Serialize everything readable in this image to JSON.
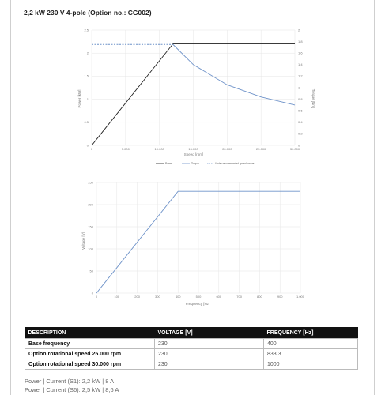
{
  "page": {
    "title": "2,2 kW 230 V 4-pole (Option no.: CG002)"
  },
  "colors": {
    "power": "#1f1f1f",
    "torque": "#6f93c9",
    "voltage": "#6f93c9",
    "grid": "#e5e5e5"
  },
  "chart_data": [
    {
      "type": "line",
      "x_ticks": [
        "0",
        "5.000",
        "10.000",
        "15.000",
        "20.000",
        "25.000",
        "30.000"
      ],
      "y_ticks": [
        "0",
        "0.5",
        "1",
        "1.5",
        "2",
        "2.5"
      ],
      "y2_ticks": [
        "0",
        "0.2",
        "0.4",
        "0.6",
        "0.8",
        "1",
        "1.2",
        "1.4",
        "1.6",
        "1.8",
        "2"
      ],
      "xlabel": "Speed [rpm]",
      "ylabel": "Power [kW]",
      "y2label": "Torque [Nm]",
      "xlim": [
        0,
        30000
      ],
      "ylim": [
        0,
        2.5
      ],
      "y2lim": [
        0,
        2
      ],
      "legend_position": "bottom-center",
      "series": [
        {
          "name": "Power",
          "axis": "left",
          "style": "solid",
          "x": [
            0,
            12000,
            30000
          ],
          "y": [
            0,
            2.2,
            2.2
          ]
        },
        {
          "name": "Torque",
          "axis": "right",
          "style": "solid",
          "x": [
            12000,
            15000,
            20000,
            25000,
            30000
          ],
          "y": [
            1.75,
            1.4,
            1.05,
            0.84,
            0.7
          ]
        },
        {
          "name": "Under recommended speed torque",
          "axis": "right",
          "style": "dashed",
          "x": [
            0,
            12000
          ],
          "y": [
            1.75,
            1.75
          ]
        }
      ]
    },
    {
      "type": "line",
      "x_ticks": [
        "0",
        "100",
        "200",
        "300",
        "400",
        "500",
        "600",
        "700",
        "800",
        "900",
        "1.000"
      ],
      "y_ticks": [
        "0",
        "50",
        "100",
        "150",
        "200",
        "250"
      ],
      "xlabel": "Frequency [Hz]",
      "ylabel": "Voltage [V]",
      "xlim": [
        0,
        1000
      ],
      "ylim": [
        0,
        250
      ],
      "series": [
        {
          "name": "",
          "axis": "left",
          "style": "solid",
          "x": [
            0,
            400,
            1000
          ],
          "y": [
            0,
            230,
            230
          ]
        }
      ]
    }
  ],
  "table": {
    "headers": [
      "DESCRIPTION",
      "VOLTAGE [V]",
      "FREQUENCY [Hz]"
    ],
    "rows": [
      [
        "Base frequency",
        "230",
        "400"
      ],
      [
        "Option rotational speed 25.000 rpm",
        "230",
        "833,3"
      ],
      [
        "Option rotational speed 30.000 rpm",
        "230",
        "1000"
      ]
    ]
  },
  "footnotes": [
    "Power | Current (S1): 2,2 kW | 8 A",
    "Power | Current (S6): 2,5 kW | 8,6 A"
  ]
}
